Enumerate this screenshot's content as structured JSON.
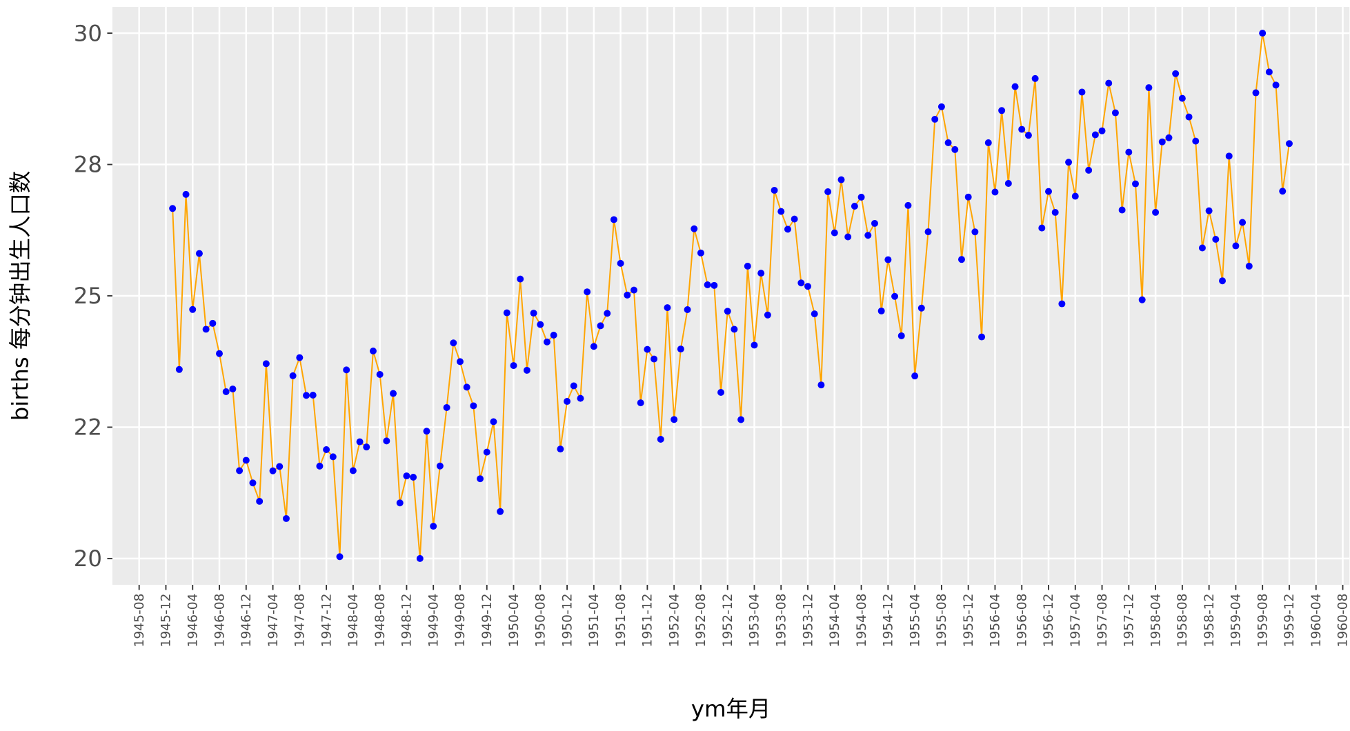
{
  "chart_data": {
    "type": "line",
    "x_label": "ym年月",
    "y_label": "births 每分钟出生人口数",
    "line_color": "#ffa500",
    "point_color": "#0000ff",
    "grid": true,
    "x": [
      "1946-01",
      "1946-02",
      "1946-03",
      "1946-04",
      "1946-05",
      "1946-06",
      "1946-07",
      "1946-08",
      "1946-09",
      "1946-10",
      "1946-11",
      "1946-12",
      "1947-01",
      "1947-02",
      "1947-03",
      "1947-04",
      "1947-05",
      "1947-06",
      "1947-07",
      "1947-08",
      "1947-09",
      "1947-10",
      "1947-11",
      "1947-12",
      "1948-01",
      "1948-02",
      "1948-03",
      "1948-04",
      "1948-05",
      "1948-06",
      "1948-07",
      "1948-08",
      "1948-09",
      "1948-10",
      "1948-11",
      "1948-12",
      "1949-01",
      "1949-02",
      "1949-03",
      "1949-04",
      "1949-05",
      "1949-06",
      "1949-07",
      "1949-08",
      "1949-09",
      "1949-10",
      "1949-11",
      "1949-12",
      "1950-01",
      "1950-02",
      "1950-03",
      "1950-04",
      "1950-05",
      "1950-06",
      "1950-07",
      "1950-08",
      "1950-09",
      "1950-10",
      "1950-11",
      "1950-12",
      "1951-01",
      "1951-02",
      "1951-03",
      "1951-04",
      "1951-05",
      "1951-06",
      "1951-07",
      "1951-08",
      "1951-09",
      "1951-10",
      "1951-11",
      "1951-12",
      "1952-01",
      "1952-02",
      "1952-03",
      "1952-04",
      "1952-05",
      "1952-06",
      "1952-07",
      "1952-08",
      "1952-09",
      "1952-10",
      "1952-11",
      "1952-12",
      "1953-01",
      "1953-02",
      "1953-03",
      "1953-04",
      "1953-05",
      "1953-06",
      "1953-07",
      "1953-08",
      "1953-09",
      "1953-10",
      "1953-11",
      "1953-12",
      "1954-01",
      "1954-02",
      "1954-03",
      "1954-04",
      "1954-05",
      "1954-06",
      "1954-07",
      "1954-08",
      "1954-09",
      "1954-10",
      "1954-11",
      "1954-12",
      "1955-01",
      "1955-02",
      "1955-03",
      "1955-04",
      "1955-05",
      "1955-06",
      "1955-07",
      "1955-08",
      "1955-09",
      "1955-10",
      "1955-11",
      "1955-12",
      "1956-01",
      "1956-02",
      "1956-03",
      "1956-04",
      "1956-05",
      "1956-06",
      "1956-07",
      "1956-08",
      "1956-09",
      "1956-10",
      "1956-11",
      "1956-12",
      "1957-01",
      "1957-02",
      "1957-03",
      "1957-04",
      "1957-05",
      "1957-06",
      "1957-07",
      "1957-08",
      "1957-09",
      "1957-10",
      "1957-11",
      "1957-12",
      "1958-01",
      "1958-02",
      "1958-03",
      "1958-04",
      "1958-05",
      "1958-06",
      "1958-07",
      "1958-08",
      "1958-09",
      "1958-10",
      "1958-11",
      "1958-12",
      "1959-01",
      "1959-02",
      "1959-03",
      "1959-04",
      "1959-05",
      "1959-06",
      "1959-07",
      "1959-08",
      "1959-09",
      "1959-10",
      "1959-11",
      "1959-12"
    ],
    "values": [
      26.663,
      23.598,
      26.931,
      24.74,
      25.806,
      24.364,
      24.477,
      23.901,
      23.175,
      23.227,
      21.672,
      21.87,
      21.439,
      21.089,
      23.709,
      21.669,
      21.752,
      20.761,
      23.479,
      23.824,
      23.105,
      23.11,
      21.759,
      22.073,
      21.937,
      20.035,
      23.59,
      21.672,
      22.222,
      22.123,
      23.95,
      23.504,
      22.238,
      23.142,
      21.059,
      21.573,
      21.548,
      20.0,
      22.424,
      20.615,
      21.761,
      22.874,
      24.104,
      23.748,
      23.262,
      22.907,
      21.519,
      22.025,
      22.604,
      20.894,
      24.677,
      23.673,
      25.32,
      23.583,
      24.671,
      24.454,
      24.122,
      24.252,
      22.084,
      22.991,
      23.287,
      23.049,
      25.076,
      24.037,
      24.43,
      24.667,
      26.451,
      25.618,
      25.014,
      25.11,
      22.964,
      23.981,
      23.798,
      22.27,
      24.775,
      22.646,
      23.988,
      24.737,
      26.276,
      25.816,
      25.21,
      25.199,
      23.162,
      24.707,
      24.364,
      22.644,
      25.565,
      24.062,
      25.431,
      24.635,
      27.009,
      26.606,
      26.268,
      26.462,
      25.246,
      25.18,
      24.657,
      23.304,
      26.982,
      26.199,
      27.21,
      26.122,
      26.706,
      26.878,
      26.152,
      26.379,
      24.712,
      25.688,
      24.99,
      24.239,
      26.721,
      23.475,
      24.767,
      26.219,
      28.361,
      28.599,
      27.914,
      27.784,
      25.693,
      26.881,
      26.217,
      24.218,
      27.914,
      26.975,
      28.527,
      27.139,
      28.982,
      28.169,
      28.056,
      29.136,
      26.291,
      26.987,
      26.589,
      24.848,
      27.543,
      26.896,
      28.878,
      27.39,
      28.065,
      28.141,
      29.048,
      28.484,
      26.634,
      27.735,
      27.132,
      24.924,
      28.963,
      26.589,
      27.931,
      28.009,
      29.229,
      28.759,
      28.405,
      27.945,
      25.912,
      26.619,
      26.076,
      25.286,
      27.66,
      25.951,
      26.398,
      25.565,
      28.865,
      30.0,
      29.261,
      29.012,
      26.992,
      27.897
    ],
    "xlim": [
      "1945-04",
      "1960-09"
    ],
    "xticks": [
      "1945-08",
      "1945-12",
      "1946-04",
      "1946-08",
      "1946-12",
      "1947-04",
      "1947-08",
      "1947-12",
      "1948-04",
      "1948-08",
      "1948-12",
      "1949-04",
      "1949-08",
      "1949-12",
      "1950-04",
      "1950-08",
      "1950-12",
      "1951-04",
      "1951-08",
      "1951-12",
      "1952-04",
      "1952-08",
      "1952-12",
      "1953-04",
      "1953-08",
      "1953-12",
      "1954-04",
      "1954-08",
      "1954-12",
      "1955-04",
      "1955-08",
      "1955-12",
      "1956-04",
      "1956-08",
      "1956-12",
      "1957-04",
      "1957-08",
      "1957-12",
      "1958-04",
      "1958-08",
      "1958-12",
      "1959-04",
      "1959-08",
      "1959-12",
      "1960-04",
      "1960-08"
    ],
    "ylim": [
      19.5,
      30.5
    ],
    "yticks": [
      20,
      {
        "value": 22.5,
        "label": "22"
      },
      25,
      {
        "value": 27.5,
        "label": "28"
      },
      30
    ]
  }
}
